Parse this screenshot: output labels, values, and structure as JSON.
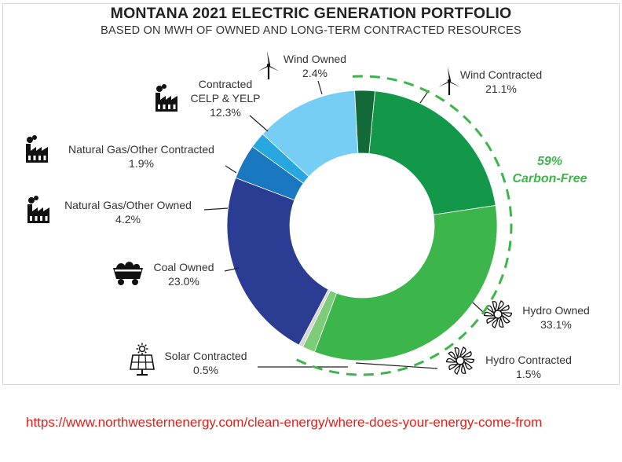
{
  "chart_data": {
    "type": "pie",
    "variant": "donut",
    "title": "MONTANA 2021 ELECTRIC GENERATION PORTFOLIO",
    "subtitle": "BASED ON MWH OF OWNED AND LONG-TERM CONTRACTED RESOURCES",
    "slices": [
      {
        "key": "wind-contracted",
        "name": "Wind Contracted",
        "value": 21.1,
        "value_label": "21.1%",
        "color": "#13984a",
        "icon": "wind-turbine-icon"
      },
      {
        "key": "hydro-owned",
        "name": "Hydro Owned",
        "value": 33.1,
        "value_label": "33.1%",
        "color": "#3cb54a",
        "icon": "hydro-turbine-icon"
      },
      {
        "key": "hydro-contracted",
        "name": "Hydro Contracted",
        "value": 1.5,
        "value_label": "1.5%",
        "color": "#7ccc7a",
        "icon": "hydro-turbine-icon"
      },
      {
        "key": "solar-contracted",
        "name": "Solar Contracted",
        "value": 0.5,
        "value_label": "0.5%",
        "color": "#d6d6d6",
        "icon": "solar-panel-icon"
      },
      {
        "key": "coal-owned",
        "name": "Coal Owned",
        "value": 23.0,
        "value_label": "23.0%",
        "color": "#2b3c93",
        "icon": "coal-cart-icon"
      },
      {
        "key": "natural-gas-other-owned",
        "name": "Natural Gas/Other Owned",
        "value": 4.2,
        "value_label": "4.2%",
        "color": "#1978c0",
        "icon": "factory-icon"
      },
      {
        "key": "natural-gas-other-contracted",
        "name": "Natural Gas/Other Contracted",
        "value": 1.9,
        "value_label": "1.9%",
        "color": "#27a7df",
        "icon": "factory-icon"
      },
      {
        "key": "contracted-celp-yelp",
        "name": "Contracted\nCELP & YELP",
        "value": 12.3,
        "value_label": "12.3%",
        "color": "#77cef4",
        "icon": "factory-icon"
      },
      {
        "key": "wind-owned",
        "name": "Wind Owned",
        "value": 2.4,
        "value_label": "2.4%",
        "color": "#136a38",
        "icon": "wind-turbine-icon"
      }
    ],
    "annotation": {
      "value": "59%",
      "text": "Carbon-Free",
      "color": "#3cb54a"
    }
  },
  "source_url": "https://www.northwesternenergy.com/clean-energy/where-does-your-energy-come-from"
}
